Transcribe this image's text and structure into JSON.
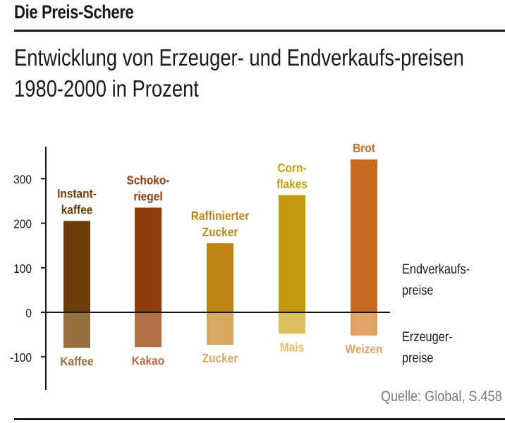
{
  "title": "Die Preis-Schere",
  "subtitle": "Entwicklung von Erzeuger- und Endverkaufs-preisen 1980-2000 in Prozent",
  "source": "Quelle: Global, S.458",
  "chart_data": {
    "type": "bar",
    "ylim": [
      -170,
      380
    ],
    "yticks": [
      300,
      200,
      100,
      0,
      -100
    ],
    "ytick_labels": [
      "300",
      "200",
      "100",
      "0",
      "-100"
    ],
    "grid": false,
    "legend_position": "right",
    "legend": {
      "positive": [
        "Endverkaufs-",
        "preise"
      ],
      "negative": [
        "Erzeuger-",
        "preise"
      ]
    },
    "categories": [
      {
        "retail_label": [
          "Instant-",
          "kaffee"
        ],
        "retail_value": 205,
        "producer_label": "Kaffee",
        "producer_value": -80,
        "color_retail": "#6b3d09",
        "color_producer": "#96703f"
      },
      {
        "retail_label": [
          "Schoko-",
          "riegel"
        ],
        "retail_value": 235,
        "producer_label": "Kakao",
        "producer_value": -78,
        "color_retail": "#8c3d0a",
        "color_producer": "#b27046"
      },
      {
        "retail_label": [
          "Raffinierter",
          "Zucker"
        ],
        "retail_value": 155,
        "producer_label": "Zucker",
        "producer_value": -73,
        "color_retail": "#bf8418",
        "color_producer": "#d8a762"
      },
      {
        "retail_label": [
          "Corn-",
          "flakes"
        ],
        "retail_value": 263,
        "producer_label": "Mais",
        "producer_value": -48,
        "color_retail": "#c49c0f",
        "color_producer": "#dcbf5e"
      },
      {
        "retail_label": [
          "Brot"
        ],
        "retail_value": 343,
        "producer_label": "Weizen",
        "producer_value": -52,
        "color_retail": "#c76a22",
        "color_producer": "#e0a366"
      }
    ]
  }
}
